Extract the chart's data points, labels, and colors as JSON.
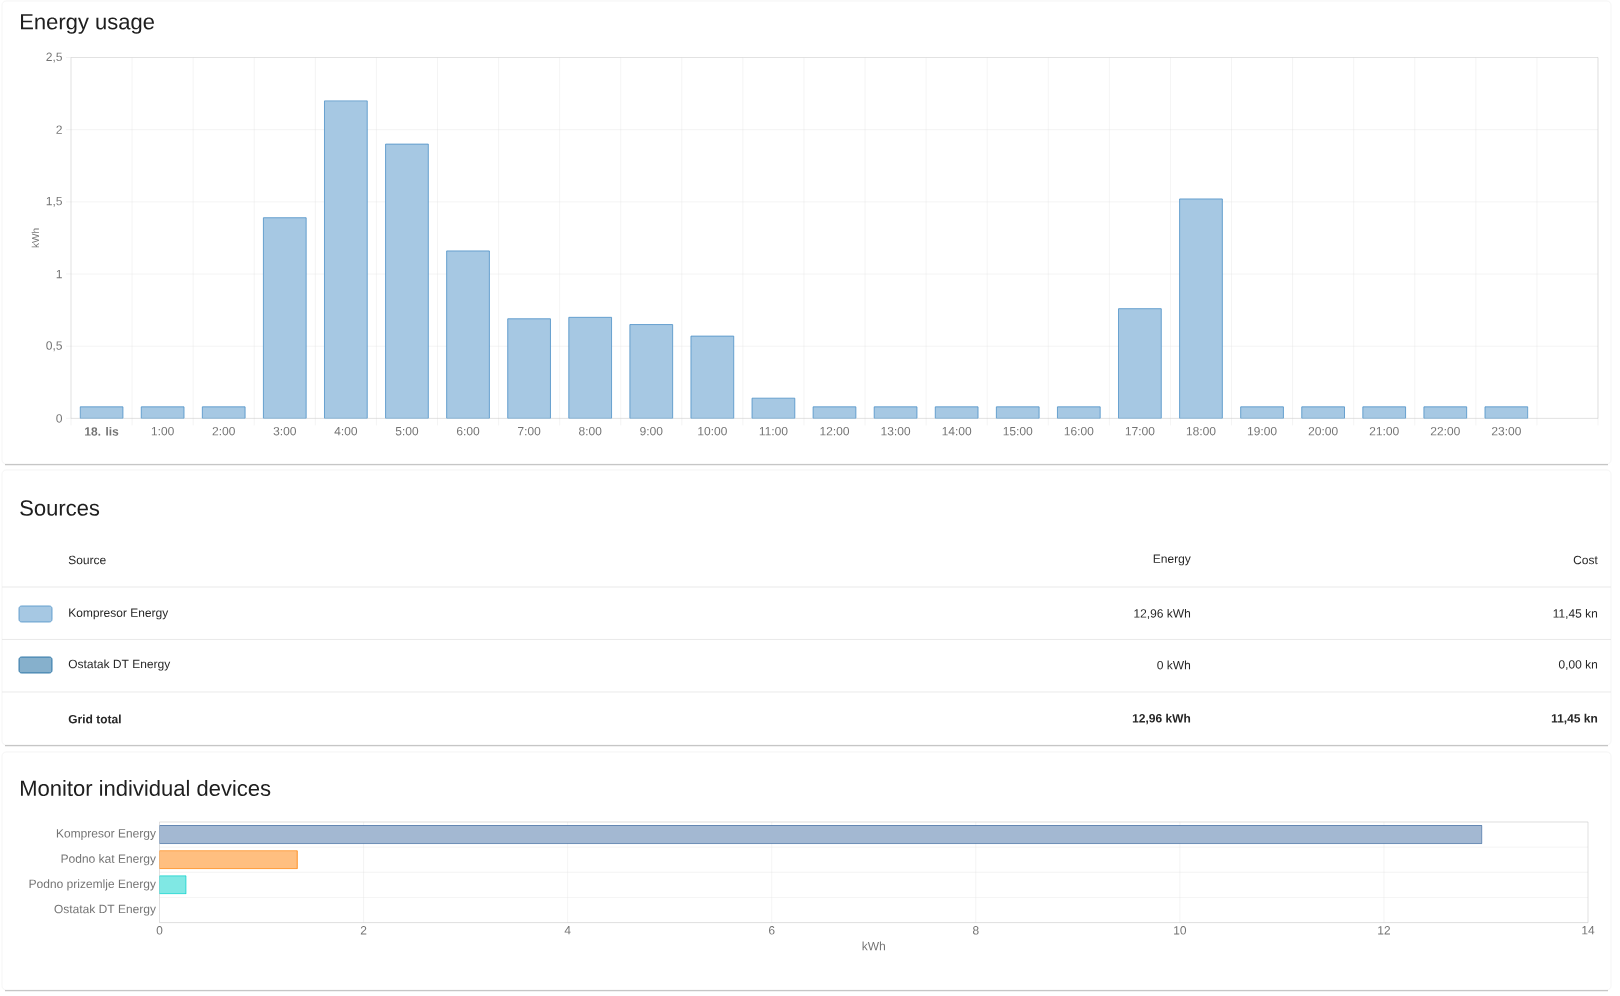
{
  "chart_data": [
    {
      "type": "bar",
      "title": "Energy usage",
      "ylabel": "kWh",
      "categories": [
        "18. lis",
        "1:00",
        "2:00",
        "3:00",
        "4:00",
        "5:00",
        "6:00",
        "7:00",
        "8:00",
        "9:00",
        "10:00",
        "11:00",
        "12:00",
        "13:00",
        "14:00",
        "15:00",
        "16:00",
        "17:00",
        "18:00",
        "19:00",
        "20:00",
        "21:00",
        "22:00",
        "23:00",
        null
      ],
      "values": [
        0.08,
        0.08,
        0.08,
        1.39,
        2.2,
        1.9,
        1.16,
        0.69,
        0.7,
        0.65,
        0.57,
        0.14,
        0.08,
        0.08,
        0.08,
        0.08,
        0.08,
        0.76,
        1.52,
        0.08,
        0.08,
        0.08,
        0.08,
        0.08,
        null
      ],
      "color": "#a6c8e3",
      "ylim": [
        0,
        2.5
      ],
      "yticks": [
        0,
        {
          "value": 0.5,
          "label": "0,5"
        },
        1,
        {
          "value": 1.5,
          "label": "1,5"
        },
        2,
        {
          "value": 2.5,
          "label": "2,5"
        }
      ],
      "grid": true
    },
    {
      "type": "other",
      "title": "Sources",
      "categories": [
        "Kompresor Energy",
        "Ostatak DT Energy"
      ],
      "colors": [
        "#a6c8e3",
        "#86b0cc"
      ],
      "annotations": [
        "Source",
        "Energy",
        "Cost",
        "12,96 kWh",
        "11,45 kn",
        "0 kWh",
        "0,00 kn",
        "Grid total",
        "12,96 kWh",
        "11,45 kn"
      ]
    },
    {
      "type": "bar",
      "orientation": "horizontal",
      "title": "Monitor individual devices",
      "xlabel": "kWh",
      "categories": [
        "Kompresor Energy",
        "Podno kat Energy",
        "Podno prizemlje Energy",
        "Ostatak DT Energy"
      ],
      "values": [
        12.96,
        1.35,
        0.26,
        0
      ],
      "colors": [
        "#a3b8d2",
        "#ffbf80",
        "#80e8e4",
        "#86b0cc"
      ],
      "xlim": [
        0,
        14
      ],
      "xticks": [
        0,
        2,
        4,
        6,
        8,
        10,
        12,
        14
      ],
      "grid": true
    }
  ]
}
